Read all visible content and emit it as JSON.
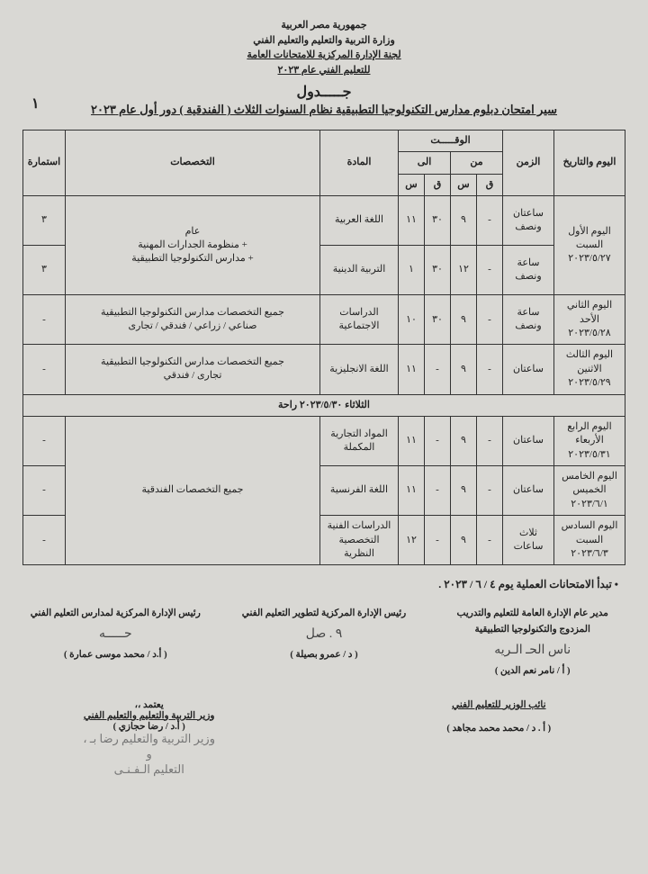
{
  "header": {
    "l1": "جمهورية مصر العربية",
    "l2": "وزارة التربية والتعليم والتعليم الفني",
    "l3": "لجنة الإدارة المركزية للامتحانات العامة",
    "l4": "للتعليم الفني عام ٢٠٢٣"
  },
  "page_number": "١",
  "title_word": "جـــــدول",
  "subtitle": "سير امتحان  دبلوم مدارس التكنولوجيا التطبيقية نظام السنوات الثلاث  ( الفندقية ) دور أول عام ٢٠٢٣",
  "columns": {
    "day": "اليوم والتاريخ",
    "dur": "الزمن",
    "time": "الوقـــــت",
    "from": "من",
    "to": "الى",
    "h": "س",
    "m": "ق",
    "subject": "المادة",
    "spec": "التخصصات",
    "form": "استمارة"
  },
  "rows": [
    {
      "day": "اليوم الأول\nالسبت\n٢٠٢٣/٥/٢٧",
      "dur1": "ساعتان ونصف",
      "fm1": "-",
      "fh1": "٩",
      "tm1": "٣٠",
      "th1": "١١",
      "subj1": "اللغة العربية",
      "form1": "٣",
      "dur2": "ساعة ونصف",
      "fm2": "-",
      "fh2": "١٢",
      "tm2": "٣٠",
      "th2": "١",
      "subj2": "التربية الدينية",
      "form2": "٣",
      "spec": "عام\n+ منظومة الجدارات المهنية\n+ مدارس التكنولوجيا التطبيقية"
    },
    {
      "day": "اليوم الثاني\nالأحد\n٢٠٢٣/٥/٢٨",
      "dur": "ساعة ونصف",
      "fm": "-",
      "fh": "٩",
      "tm": "٣٠",
      "th": "١٠",
      "subj": "الدراسات الاجتماعية",
      "spec": "جميع التخصصات مدارس التكنولوجيا التطبيقية\nصناعي / زراعي / فندقي / تجارى",
      "form": "-"
    },
    {
      "day": "اليوم الثالث\nالاثنين\n٢٠٢٣/٥/٢٩",
      "dur": "ساعتان",
      "fm": "-",
      "fh": "٩",
      "tm": "-",
      "th": "١١",
      "subj": "اللغة الانجليزية",
      "spec": "جميع التخصصات مدارس التكنولوجيا التطبيقية\nتجارى / فندقي",
      "form": "-"
    }
  ],
  "rest": "الثلاثاء  ٢٠٢٣/٥/٣٠  راحة",
  "rows2": [
    {
      "day": "اليوم الرابع\nالأربعاء\n٢٠٢٣/٥/٣١",
      "dur": "ساعتان",
      "fm": "-",
      "fh": "٩",
      "tm": "-",
      "th": "١١",
      "subj": "المواد التجارية المكملة",
      "form": "-"
    },
    {
      "day": "اليوم الخامس\nالخميس\n٢٠٢٣/٦/١",
      "dur": "ساعتان",
      "fm": "-",
      "fh": "٩",
      "tm": "-",
      "th": "١١",
      "subj": "اللغة الفرنسية",
      "form": "-"
    },
    {
      "day": "اليوم السادس\nالسبت\n٢٠٢٣/٦/٣",
      "dur": "ثلاث ساعات",
      "fm": "-",
      "fh": "٩",
      "tm": "-",
      "th": "١٢",
      "subj": "الدراسات الفنية التخصصية النظرية",
      "form": "-"
    }
  ],
  "spec2": "جميع التخصصات الفندقية",
  "note": "•  تبدأ الامتحانات العملية يوم ٤ / ٦ / ٢٠٢٣ .",
  "sigs": {
    "s1_t": "مدير عام الإدارة العامة للتعليم والتدريب\nالمزدوج والتكنولوجيا التطبيقية",
    "s1_scr": "ناس الحـ الـريه",
    "s1_n": "( أ / نامر نعم الدين )",
    "s2_t": "رئيس الإدارة المركزية لتطوير التعليم الفني",
    "s2_scr": "٩ . صل",
    "s2_n": "( د / عمرو بصيلة )",
    "s3_t": "رئيس الإدارة المركزية لمدارس التعليم الفني",
    "s3_scr": "حـــــه",
    "s3_n": "( أ.د / محمد موسى عمارة )",
    "deputy_t": "نائب الوزير للتعليم الفني",
    "deputy_n": "( أ . د / محمد محمد مجاهد )",
    "approve": "يعتمد ،،",
    "min_t": "وزير التربية والتعليم والتعليم الفني",
    "min_n": "( أ.د / رضا حجازي )",
    "stamp": "وزير التربية والتعليم   رضا بـ ،\nو\nالتعليم الـفـنـى"
  }
}
